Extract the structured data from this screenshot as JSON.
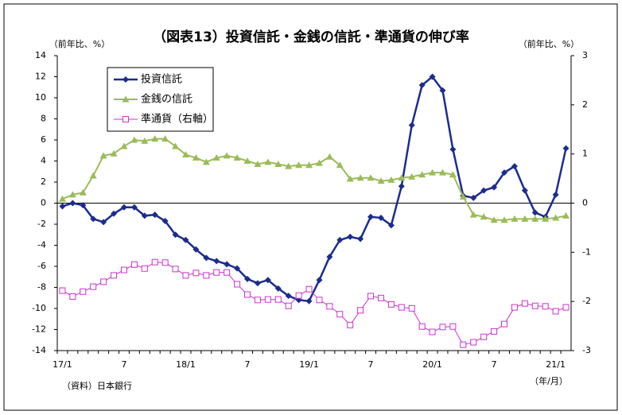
{
  "chart_data": {
    "type": "line",
    "title": "（図表13）投資信託・金銭の信託・準通貨の伸び率",
    "y_label": "（前年比、%）",
    "y2_label": "（前年比、%）",
    "source": "（資料）日本銀行",
    "x_label": "（年/月）",
    "categories": [
      "17/1",
      null,
      null,
      null,
      null,
      null,
      "7",
      null,
      null,
      null,
      null,
      null,
      "18/1",
      null,
      null,
      null,
      null,
      null,
      "7",
      null,
      null,
      null,
      null,
      null,
      "19/1",
      null,
      null,
      null,
      null,
      null,
      "7",
      null,
      null,
      null,
      null,
      null,
      "20/1",
      null,
      null,
      null,
      null,
      null,
      "7",
      null,
      null,
      null,
      null,
      null,
      "21/1",
      null
    ],
    "series": [
      {
        "name": "投資信託",
        "color": "#1c2c8c",
        "marker": "diamond",
        "values": [
          -0.3,
          0,
          -0.2,
          -1.5,
          -1.8,
          -1.0,
          -0.4,
          -0.4,
          -1.2,
          -1.1,
          -1.7,
          -3.0,
          -3.5,
          -4.4,
          -5.2,
          -5.5,
          -5.8,
          -6.2,
          -7.2,
          -7.6,
          -7.3,
          -8.1,
          -8.8,
          -9.2,
          -9.3,
          -7.3,
          -5.1,
          -3.5,
          -3.2,
          -3.4,
          -1.3,
          -1.4,
          -2.1,
          1.6,
          7.4,
          11.2,
          12.0,
          10.7,
          5.1,
          0.7,
          0.5,
          1.2,
          1.5,
          2.9,
          3.5,
          1.2,
          -0.9,
          -1.3,
          0.8,
          5.2
        ]
      },
      {
        "name": "金銭の信託",
        "color": "#9bbb59",
        "marker": "triangle",
        "values": [
          0.4,
          0.8,
          1.0,
          2.6,
          4.5,
          4.7,
          5.4,
          6.0,
          5.9,
          6.1,
          6.1,
          5.4,
          4.6,
          4.3,
          3.9,
          4.3,
          4.5,
          4.3,
          4.0,
          3.7,
          3.9,
          3.7,
          3.5,
          3.6,
          3.6,
          3.8,
          4.4,
          3.6,
          2.3,
          2.4,
          2.4,
          2.1,
          2.2,
          2.4,
          2.5,
          2.7,
          2.9,
          2.9,
          2.7,
          0.6,
          -1.1,
          -1.3,
          -1.6,
          -1.6,
          -1.5,
          -1.5,
          -1.5,
          -1.5,
          -1.4,
          -1.2
        ]
      },
      {
        "name": "準通貨（右軸）",
        "color": "#cc33cc",
        "marker": "square",
        "axis": "y2",
        "values": [
          -1.78,
          -1.9,
          -1.8,
          -1.7,
          -1.6,
          -1.47,
          -1.36,
          -1.25,
          -1.33,
          -1.2,
          -1.21,
          -1.34,
          -1.47,
          -1.42,
          -1.47,
          -1.41,
          -1.41,
          -1.65,
          -1.86,
          -1.97,
          -1.96,
          -1.96,
          -2.09,
          -1.88,
          -1.75,
          -1.97,
          -2.1,
          -2.26,
          -2.48,
          -2.18,
          -1.89,
          -1.93,
          -2.06,
          -2.12,
          -2.14,
          -2.51,
          -2.62,
          -2.52,
          -2.51,
          -2.88,
          -2.83,
          -2.72,
          -2.61,
          -2.46,
          -2.12,
          -2.04,
          -2.09,
          -2.1,
          -2.2,
          -2.12
        ]
      }
    ],
    "ylim": [
      -14,
      14
    ],
    "yticks": [
      14,
      12,
      10,
      8,
      6,
      4,
      2,
      0,
      -2,
      -4,
      -6,
      -8,
      -10,
      -12,
      -14
    ],
    "y2lim": [
      -3,
      3
    ],
    "y2ticks": [
      3,
      2,
      1,
      0,
      -1,
      -2,
      -3
    ],
    "legend": "upper left",
    "grid": false
  }
}
